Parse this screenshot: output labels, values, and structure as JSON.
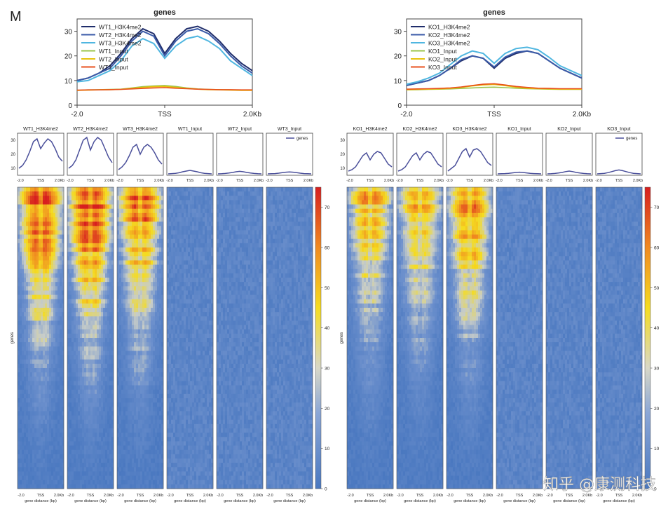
{
  "panel_letter": "M",
  "watermark": "知乎 @康测科技",
  "colors": {
    "h3k4me2_1": "#1f2d6b",
    "h3k4me2_2": "#3b5ba8",
    "h3k4me2_3": "#4fb6e0",
    "input_1": "#9bc44c",
    "input_2": "#e8c20c",
    "input_3": "#e8501c",
    "profile_line": "#4a4f9a",
    "heat_low": "#4a78c0",
    "heat_mid_low": "#d8d8c8",
    "heat_mid": "#f5dc20",
    "heat_high": "#d71f1f"
  },
  "chart_data": [
    {
      "type": "line",
      "title": "genes",
      "x": [
        -2000,
        -1750,
        -1500,
        -1250,
        -1000,
        -750,
        -500,
        -250,
        0,
        250,
        500,
        750,
        1000,
        1250,
        1500,
        1750,
        2000
      ],
      "x_ticks": [
        "-2.0",
        "TSS",
        "2.0Kb"
      ],
      "y_ticks": [
        "0",
        "10",
        "20",
        "30"
      ],
      "ylim": [
        0,
        35
      ],
      "series": [
        {
          "name": "WT1_H3K4me2",
          "values": [
            10,
            11,
            13,
            16,
            21,
            27,
            31,
            29,
            21,
            27,
            31,
            32,
            30,
            26,
            21,
            17,
            14
          ]
        },
        {
          "name": "WT2_H3K4me2",
          "values": [
            10,
            11,
            13,
            15,
            20,
            26,
            30,
            28,
            20,
            26,
            30,
            31,
            29,
            25,
            20,
            16,
            13
          ]
        },
        {
          "name": "WT3_H3K4me2",
          "values": [
            9.5,
            10,
            12,
            14,
            18,
            24,
            27,
            25,
            19,
            24,
            27,
            28,
            26,
            23,
            18,
            15,
            12
          ]
        },
        {
          "name": "WT1_Input",
          "values": [
            6,
            6.2,
            6.3,
            6.4,
            6.5,
            7,
            7.5,
            7.8,
            8,
            7.6,
            7,
            6.6,
            6.4,
            6.3,
            6.2,
            6.1,
            6.1
          ]
        },
        {
          "name": "WT2_Input",
          "values": [
            6,
            6.1,
            6.2,
            6.3,
            6.4,
            6.8,
            7.2,
            7.5,
            7.6,
            7.2,
            6.8,
            6.5,
            6.3,
            6.2,
            6.1,
            6,
            6
          ]
        },
        {
          "name": "WT3_Input",
          "values": [
            6.1,
            6.2,
            6.2,
            6.3,
            6.4,
            6.6,
            6.8,
            7,
            7.1,
            6.9,
            6.7,
            6.5,
            6.4,
            6.3,
            6.3,
            6.2,
            6.2
          ]
        }
      ],
      "legend": "top-left"
    },
    {
      "type": "line",
      "title": "genes",
      "x": [
        -2000,
        -1750,
        -1500,
        -1250,
        -1000,
        -750,
        -500,
        -250,
        0,
        250,
        500,
        750,
        1000,
        1250,
        1500,
        1750,
        2000
      ],
      "x_ticks": [
        "-2.0",
        "TSS",
        "2.0Kb"
      ],
      "y_ticks": [
        "0",
        "10",
        "20",
        "30"
      ],
      "ylim": [
        0,
        35
      ],
      "series": [
        {
          "name": "KO1_H3K4me2",
          "values": [
            8,
            9,
            10,
            12,
            15,
            18,
            20,
            19,
            15,
            19,
            21,
            22,
            21,
            18,
            15,
            13,
            11
          ]
        },
        {
          "name": "KO2_H3K4me2",
          "values": [
            8,
            9,
            10,
            12,
            15,
            18.5,
            20,
            19,
            15.5,
            19.5,
            21.5,
            22,
            21,
            18,
            15,
            13,
            11
          ]
        },
        {
          "name": "KO3_H3K4me2",
          "values": [
            8.5,
            9.5,
            11,
            13,
            16.5,
            20,
            22,
            21,
            17,
            21,
            23,
            23.5,
            22.5,
            19.5,
            16,
            14,
            12
          ]
        },
        {
          "name": "KO1_Input",
          "values": [
            6.2,
            6.3,
            6.4,
            6.5,
            6.6,
            6.8,
            7,
            7.2,
            7.3,
            7.1,
            6.9,
            6.7,
            6.6,
            6.5,
            6.4,
            6.4,
            6.4
          ]
        },
        {
          "name": "KO2_Input",
          "values": [
            6.3,
            6.4,
            6.5,
            6.6,
            6.8,
            7.2,
            7.8,
            8.2,
            8.4,
            7.9,
            7.3,
            6.9,
            6.7,
            6.6,
            6.5,
            6.5,
            6.5
          ]
        },
        {
          "name": "KO3_Input",
          "values": [
            6.5,
            6.6,
            6.7,
            6.8,
            7,
            7.4,
            8,
            8.5,
            8.7,
            8.2,
            7.6,
            7.2,
            6.9,
            6.8,
            6.7,
            6.7,
            6.7
          ]
        }
      ],
      "legend": "top-left"
    },
    {
      "type": "heatmap",
      "group": "WT",
      "profile_y_ticks": [
        "10",
        "20",
        "30"
      ],
      "profile_x_ticks": [
        "-2.0",
        "TSS",
        "2.0Kb"
      ],
      "profile_legend": "genes",
      "y_label": "genes",
      "x_label": "gene distance (bp)",
      "colorbar_ticks": [
        "0",
        "10",
        "20",
        "30",
        "40",
        "50",
        "60",
        "70"
      ],
      "colorbar_range": [
        0,
        75
      ],
      "columns": [
        {
          "name": "WT1_H3K4me2",
          "signal": 1.0,
          "profile": [
            10,
            12,
            16,
            22,
            29,
            31,
            24,
            28,
            31,
            29,
            24,
            18,
            15
          ]
        },
        {
          "name": "WT2_H3K4me2",
          "signal": 1.05,
          "profile": [
            10,
            12,
            16,
            23,
            30,
            32,
            23,
            29,
            32,
            30,
            24,
            18,
            14
          ]
        },
        {
          "name": "WT3_H3K4me2",
          "signal": 0.9,
          "profile": [
            9,
            11,
            14,
            19,
            25,
            27,
            20,
            25,
            27,
            25,
            21,
            16,
            13
          ]
        },
        {
          "name": "WT1_Input",
          "signal": 0.05,
          "profile": [
            6,
            6.2,
            6.4,
            6.8,
            7.5,
            8,
            8.5,
            8,
            7.5,
            6.8,
            6.4,
            6.2,
            6
          ]
        },
        {
          "name": "WT2_Input",
          "signal": 0.04,
          "profile": [
            6,
            6.1,
            6.3,
            6.6,
            7,
            7.5,
            7.8,
            7.5,
            7,
            6.6,
            6.3,
            6.1,
            6
          ]
        },
        {
          "name": "WT3_Input",
          "signal": 0.04,
          "profile": [
            6,
            6.1,
            6.2,
            6.5,
            6.9,
            7.2,
            7.4,
            7.2,
            6.9,
            6.5,
            6.2,
            6.1,
            6
          ]
        }
      ]
    },
    {
      "type": "heatmap",
      "group": "KO",
      "profile_y_ticks": [
        "10",
        "20",
        "30"
      ],
      "profile_x_ticks": [
        "-2.0",
        "TSS",
        "2.0Kb"
      ],
      "profile_legend": "genes",
      "y_label": "genes",
      "x_label": "gene distance (bp)",
      "colorbar_ticks": [
        "0",
        "10",
        "20",
        "30",
        "40",
        "50",
        "60",
        "70"
      ],
      "colorbar_range": [
        0,
        75
      ],
      "columns": [
        {
          "name": "KO1_H3K4me2",
          "signal": 0.72,
          "profile": [
            8,
            9,
            11,
            15,
            19,
            21,
            16,
            20,
            22,
            21,
            17,
            13,
            11
          ]
        },
        {
          "name": "KO2_H3K4me2",
          "signal": 0.7,
          "profile": [
            8,
            9,
            11,
            15,
            19,
            21,
            16,
            20,
            22,
            21,
            17,
            13,
            11
          ]
        },
        {
          "name": "KO3_H3K4me2",
          "signal": 0.82,
          "profile": [
            8,
            10,
            12,
            17,
            22,
            24,
            18,
            23,
            24,
            22,
            18,
            14,
            12
          ]
        },
        {
          "name": "KO1_Input",
          "signal": 0.04,
          "profile": [
            6,
            6.1,
            6.2,
            6.4,
            6.7,
            7,
            7.2,
            7,
            6.7,
            6.4,
            6.2,
            6.1,
            6
          ]
        },
        {
          "name": "KO2_Input",
          "signal": 0.05,
          "profile": [
            6,
            6.1,
            6.3,
            6.6,
            7,
            7.6,
            8,
            7.6,
            7,
            6.6,
            6.3,
            6.1,
            6
          ]
        },
        {
          "name": "KO3_Input",
          "signal": 0.06,
          "profile": [
            6,
            6.2,
            6.4,
            6.9,
            7.6,
            8.3,
            8.8,
            8.3,
            7.6,
            6.9,
            6.4,
            6.2,
            6
          ]
        }
      ]
    }
  ]
}
